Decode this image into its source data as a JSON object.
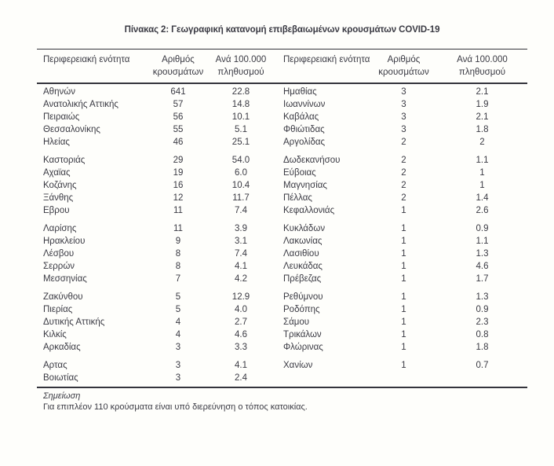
{
  "title": "Πίνακας 2: Γεωγραφική κατανομή επιβεβαιωμένων κρουσμάτων COVID-19",
  "columns": {
    "region": "Περιφερειακή ενότητα",
    "cases_top": "Αριθμός",
    "cases_bottom": "κρουσμάτων",
    "rate_top": "Ανά 100.000",
    "rate_bottom": "πληθυσμού"
  },
  "left_groups": [
    [
      [
        "Αθηνών",
        "641",
        "22.8"
      ],
      [
        "Ανατολικής Αττικής",
        "57",
        "14.8"
      ],
      [
        "Πειραιώς",
        "56",
        "10.1"
      ],
      [
        "Θεσσαλονίκης",
        "55",
        "5.1"
      ],
      [
        "Ηλείας",
        "46",
        "25.1"
      ]
    ],
    [
      [
        "Καστοριάς",
        "29",
        "54.0"
      ],
      [
        "Αχαϊας",
        "19",
        "6.0"
      ],
      [
        "Κοζάνης",
        "16",
        "10.4"
      ],
      [
        "Ξάνθης",
        "12",
        "11.7"
      ],
      [
        "Εβρου",
        "11",
        "7.4"
      ]
    ],
    [
      [
        "Λαρίσης",
        "11",
        "3.9"
      ],
      [
        "Ηρακλείου",
        "9",
        "3.1"
      ],
      [
        "Λέσβου",
        "8",
        "7.4"
      ],
      [
        "Σερρών",
        "8",
        "4.1"
      ],
      [
        "Μεσσηνίας",
        "7",
        "4.2"
      ]
    ],
    [
      [
        "Ζακύνθου",
        "5",
        "12.9"
      ],
      [
        "Πιερίας",
        "5",
        "4.0"
      ],
      [
        "Δυτικής Αττικής",
        "4",
        "2.7"
      ],
      [
        "Κιλκίς",
        "4",
        "4.6"
      ],
      [
        "Αρκαδίας",
        "3",
        "3.3"
      ]
    ],
    [
      [
        "Αρτας",
        "3",
        "4.1"
      ],
      [
        "Βοιωτίας",
        "3",
        "2.4"
      ]
    ]
  ],
  "right_groups": [
    [
      [
        "Ημαθίας",
        "3",
        "2.1"
      ],
      [
        "Ιωαννίνων",
        "3",
        "1.9"
      ],
      [
        "Καβάλας",
        "3",
        "2.1"
      ],
      [
        "Φθιώτιδας",
        "3",
        "1.8"
      ],
      [
        "Αργολίδας",
        "2",
        "2"
      ]
    ],
    [
      [
        "Δωδεκανήσου",
        "2",
        "1.1"
      ],
      [
        "Εύβοιας",
        "2",
        "1"
      ],
      [
        "Μαγνησίας",
        "2",
        "1"
      ],
      [
        "Πέλλας",
        "2",
        "1.4"
      ],
      [
        "Κεφαλλονιάς",
        "1",
        "2.6"
      ]
    ],
    [
      [
        "Κυκλάδων",
        "1",
        "0.9"
      ],
      [
        "Λακωνίας",
        "1",
        "1.1"
      ],
      [
        "Λασιθίου",
        "1",
        "1.3"
      ],
      [
        "Λευκάδας",
        "1",
        "4.6"
      ],
      [
        "Πρέβεζας",
        "1",
        "1.7"
      ]
    ],
    [
      [
        "Ρεθύμνου",
        "1",
        "1.3"
      ],
      [
        "Ροδόπης",
        "1",
        "0.9"
      ],
      [
        "Σάμου",
        "1",
        "2.3"
      ],
      [
        "Τρικάλων",
        "1",
        "0.8"
      ],
      [
        "Φλώρινας",
        "1",
        "1.8"
      ]
    ],
    [
      [
        "Χανίων",
        "1",
        "0.7"
      ]
    ]
  ],
  "note": {
    "label": "Σημείωση",
    "text": "Για επιπλέον 110 κρούσματα είναι υπό διερεύνηση ο τόπος κατοικίας."
  },
  "colors": {
    "text": "#3a3a43",
    "rule": "#34343c",
    "background": "#fefefb"
  }
}
